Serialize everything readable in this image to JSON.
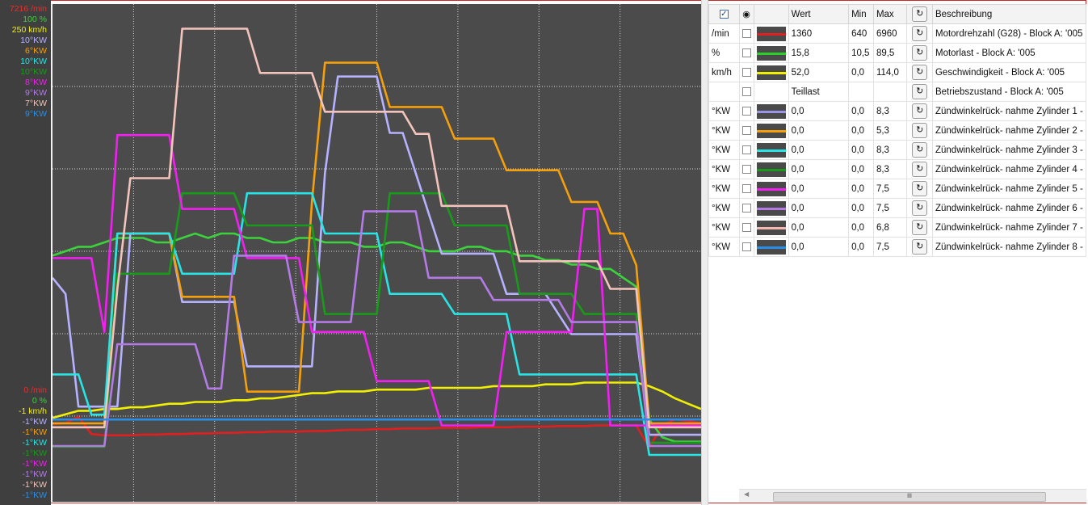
{
  "axis_labels": {
    "max": [
      {
        "text": "7216 /min",
        "color": "#e53030"
      },
      {
        "text": "100 %",
        "color": "#3cd23c"
      },
      {
        "text": "250 km/h",
        "color": "#f0f000"
      },
      {
        "text": "10°KW",
        "color": "#b6b2ff"
      },
      {
        "text": "6°KW",
        "color": "#f5a00a"
      },
      {
        "text": "10°KW",
        "color": "#28e4e4"
      },
      {
        "text": "10°KW",
        "color": "#1a9a1a"
      },
      {
        "text": "8°KW",
        "color": "#f020f0"
      },
      {
        "text": "9°KW",
        "color": "#b47ae6"
      },
      {
        "text": "7°KW",
        "color": "#f4c4bc"
      },
      {
        "text": "9°KW",
        "color": "#2a8ee6"
      }
    ],
    "min": [
      {
        "text": "0 /min",
        "color": "#e53030"
      },
      {
        "text": "0 %",
        "color": "#3cd23c"
      },
      {
        "text": "-1 km/h",
        "color": "#f0f000"
      },
      {
        "text": "-1°KW",
        "color": "#b6b2ff"
      },
      {
        "text": "-1°KW",
        "color": "#f5a00a"
      },
      {
        "text": "-1°KW",
        "color": "#28e4e4"
      },
      {
        "text": "-1°KW",
        "color": "#1a9a1a"
      },
      {
        "text": "-1°KW",
        "color": "#f020f0"
      },
      {
        "text": "-1°KW",
        "color": "#b47ae6"
      },
      {
        "text": "-1°KW",
        "color": "#f4c4bc"
      },
      {
        "text": "-1°KW",
        "color": "#2a8ee6"
      }
    ]
  },
  "table": {
    "headers": {
      "wert": "Wert",
      "min": "Min",
      "max": "Max",
      "beschreibung": "Beschreibung"
    },
    "rows": [
      {
        "unit": "/min",
        "color": "#e02020",
        "wert": "1360",
        "min": "640",
        "max": "6960",
        "desc": "Motordrehzahl (G28) - Block A: '005"
      },
      {
        "unit": "%",
        "color": "#2ad02a",
        "wert": "15,8",
        "min": "10,5",
        "max": "89,5",
        "desc": "Motorlast  - Block A: '005"
      },
      {
        "unit": "km/h",
        "color": "#f0f000",
        "wert": "52,0",
        "min": "0,0",
        "max": "114,0",
        "desc": "Geschwindigkeit  - Block A: '005"
      },
      {
        "unit": "",
        "color": "",
        "wert": "Teillast",
        "min": "",
        "max": "",
        "desc": "Betriebszustand  - Block A: '005"
      },
      {
        "unit": "°KW",
        "color": "#9a94e6",
        "wert": "0,0",
        "min": "0,0",
        "max": "8,3",
        "desc": "Zündwinkelrück- nahme Zylinder 1 -"
      },
      {
        "unit": "°KW",
        "color": "#f5a00a",
        "wert": "0,0",
        "min": "0,0",
        "max": "5,3",
        "desc": "Zündwinkelrück- nahme Zylinder 2 -"
      },
      {
        "unit": "°KW",
        "color": "#28e4e4",
        "wert": "0,0",
        "min": "0,0",
        "max": "8,3",
        "desc": "Zündwinkelrück- nahme Zylinder 3 -"
      },
      {
        "unit": "°KW",
        "color": "#1a9a1a",
        "wert": "0,0",
        "min": "0,0",
        "max": "8,3",
        "desc": "Zündwinkelrück- nahme Zylinder 4 -"
      },
      {
        "unit": "°KW",
        "color": "#f020f0",
        "wert": "0,0",
        "min": "0,0",
        "max": "7,5",
        "desc": "Zündwinkelrück- nahme Zylinder 5 -"
      },
      {
        "unit": "°KW",
        "color": "#b47ae6",
        "wert": "0,0",
        "min": "0,0",
        "max": "7,5",
        "desc": "Zündwinkelrück- nahme Zylinder 6 -"
      },
      {
        "unit": "°KW",
        "color": "#f4b8b0",
        "wert": "0,0",
        "min": "0,0",
        "max": "6,8",
        "desc": "Zündwinkelrück- nahme Zylinder 7 -"
      },
      {
        "unit": "°KW",
        "color": "#2a8ee6",
        "wert": "0,0",
        "min": "0,0",
        "max": "7,5",
        "desc": "Zündwinkelrück- nahme Zylinder 8 -"
      }
    ]
  },
  "chart_data": {
    "type": "line",
    "title": "",
    "xlabel": "",
    "ylabel": "",
    "x": [
      0,
      2,
      4,
      6,
      8,
      10,
      12,
      14,
      16,
      18,
      20,
      22,
      24,
      26,
      28,
      30,
      32,
      34,
      36,
      38,
      40,
      42,
      44,
      46,
      48,
      50,
      52,
      54,
      56,
      58,
      60,
      62,
      64,
      66,
      68,
      70,
      72,
      74,
      76,
      78,
      80,
      82,
      84,
      86,
      88,
      90,
      92,
      94,
      96,
      98,
      100
    ],
    "grid": true,
    "series": [
      {
        "color": "#e02020",
        "ylim": [
          0,
          7216
        ],
        "values": [
          500,
          520,
          620,
          340,
          320,
          320,
          320,
          330,
          330,
          340,
          340,
          350,
          350,
          360,
          360,
          370,
          370,
          380,
          380,
          380,
          390,
          390,
          400,
          410,
          410,
          420,
          420,
          430,
          430,
          430,
          440,
          440,
          440,
          450,
          450,
          450,
          460,
          460,
          460,
          470,
          470,
          470,
          480,
          480,
          480,
          480,
          120,
          480,
          580,
          550,
          520
        ]
      },
      {
        "color": "#3cd23c",
        "ylim": [
          0,
          100
        ],
        "values": [
          45,
          46,
          47,
          47,
          48,
          49,
          49,
          49,
          48,
          48,
          49,
          50,
          49,
          50,
          50,
          49,
          49,
          48,
          48,
          49,
          49,
          48,
          48,
          48,
          47,
          47,
          48,
          48,
          47,
          46,
          46,
          46,
          47,
          47,
          46,
          46,
          45,
          45,
          44,
          44,
          43,
          43,
          42,
          42,
          40,
          38,
          8,
          4,
          3,
          3,
          3
        ]
      },
      {
        "color": "#f0f000",
        "ylim": [
          -1,
          250
        ],
        "values": [
          20,
          22,
          24,
          24,
          25,
          25,
          26,
          26,
          27,
          28,
          28,
          29,
          29,
          29,
          30,
          30,
          31,
          31,
          32,
          33,
          34,
          34,
          35,
          35,
          35,
          36,
          36,
          36,
          36,
          37,
          37,
          37,
          37,
          37,
          38,
          38,
          38,
          38,
          39,
          39,
          39,
          40,
          40,
          40,
          40,
          40,
          38,
          35,
          31,
          28,
          25
        ]
      },
      {
        "color": "#b6b2ff",
        "ylim": [
          -1,
          10
        ],
        "values": [
          3.4,
          3.0,
          0.2,
          0.2,
          0.2,
          0.2,
          4.5,
          4.5,
          4.5,
          4.5,
          2.8,
          2.8,
          2.8,
          2.8,
          2.8,
          1.2,
          1.2,
          1.2,
          1.2,
          1.2,
          1.2,
          6.0,
          8.4,
          8.4,
          8.4,
          8.4,
          7.0,
          7.0,
          6.0,
          5.0,
          4.0,
          4.0,
          4.0,
          4.0,
          4.0,
          3.0,
          3.0,
          3.0,
          3.0,
          2.5,
          2.0,
          2.0,
          2.0,
          2.0,
          2.0,
          2.0,
          -0.5,
          -0.5,
          -0.5,
          -0.5,
          -0.5
        ]
      },
      {
        "color": "#f5a00a",
        "ylim": [
          -1,
          6
        ],
        "values": [
          -0.5,
          -0.5,
          -0.5,
          -0.5,
          -0.5,
          2.5,
          2.5,
          2.5,
          2.5,
          2.5,
          1.5,
          1.5,
          1.5,
          1.5,
          1.5,
          0.0,
          0.0,
          0.0,
          0.0,
          0.0,
          3.0,
          5.2,
          5.2,
          5.2,
          5.2,
          5.2,
          4.5,
          4.5,
          4.5,
          4.5,
          4.5,
          4.0,
          4.0,
          4.0,
          4.0,
          3.5,
          3.5,
          3.5,
          3.5,
          3.5,
          3.0,
          3.0,
          3.0,
          2.5,
          2.5,
          2.0,
          -0.5,
          -0.5,
          -0.5,
          -0.5,
          -0.5
        ]
      },
      {
        "color": "#28e4e4",
        "ylim": [
          -1,
          10
        ],
        "values": [
          1.0,
          1.0,
          1.0,
          0.0,
          0.0,
          4.5,
          4.5,
          4.5,
          4.5,
          4.5,
          3.5,
          3.5,
          3.5,
          3.5,
          3.5,
          5.5,
          5.5,
          5.5,
          5.5,
          5.5,
          5.5,
          4.5,
          4.5,
          4.5,
          4.5,
          4.5,
          3.0,
          3.0,
          3.0,
          3.0,
          3.0,
          2.5,
          2.5,
          2.5,
          2.5,
          2.5,
          1.0,
          1.0,
          1.0,
          1.0,
          1.0,
          1.0,
          1.0,
          1.0,
          1.0,
          1.0,
          -1.0,
          -1.0,
          -1.0,
          -1.0,
          -1.0
        ]
      },
      {
        "color": "#1a9a1a",
        "ylim": [
          -1,
          10
        ],
        "values": [
          -0.8,
          -0.8,
          -0.8,
          -0.8,
          -0.8,
          3.5,
          3.5,
          3.5,
          3.5,
          3.5,
          5.5,
          5.5,
          5.5,
          5.5,
          5.5,
          4.7,
          4.7,
          4.7,
          4.7,
          4.7,
          4.7,
          2.5,
          2.5,
          2.5,
          2.5,
          2.5,
          5.5,
          5.5,
          5.5,
          5.5,
          5.5,
          4.7,
          4.7,
          4.7,
          4.7,
          4.7,
          3.0,
          3.0,
          3.0,
          3.0,
          3.0,
          2.5,
          2.5,
          2.5,
          2.5,
          2.5,
          -0.7,
          -0.7,
          -0.7,
          -0.7,
          -0.7
        ]
      },
      {
        "color": "#f020f0",
        "ylim": [
          -1,
          8
        ],
        "values": [
          3.0,
          3.0,
          3.0,
          3.0,
          1.5,
          5.5,
          5.5,
          5.5,
          5.5,
          5.5,
          4.0,
          4.0,
          4.0,
          4.0,
          4.0,
          3.0,
          3.0,
          3.0,
          3.0,
          3.0,
          1.5,
          1.5,
          1.5,
          1.5,
          1.5,
          0.5,
          0.5,
          0.5,
          0.5,
          0.5,
          -0.4,
          -0.4,
          -0.4,
          -0.4,
          -0.4,
          1.5,
          1.5,
          1.5,
          1.5,
          1.5,
          1.5,
          4.0,
          4.0,
          -0.4,
          -0.4,
          -0.4,
          -0.4,
          -0.4,
          -0.4,
          -0.4,
          -0.4
        ]
      },
      {
        "color": "#b47ae6",
        "ylim": [
          -1,
          9
        ],
        "values": [
          -0.8,
          -0.8,
          -0.8,
          -0.8,
          -0.8,
          1.5,
          1.5,
          1.5,
          1.5,
          1.5,
          1.5,
          1.5,
          0.5,
          0.5,
          3.5,
          3.5,
          3.5,
          3.5,
          3.5,
          2.0,
          2.0,
          2.0,
          2.0,
          2.0,
          4.5,
          4.5,
          4.5,
          4.5,
          4.5,
          3.0,
          3.0,
          3.0,
          3.0,
          3.0,
          2.5,
          2.5,
          2.5,
          2.5,
          2.5,
          2.5,
          2.0,
          2.0,
          2.0,
          2.0,
          2.0,
          2.0,
          -0.8,
          -0.8,
          -0.8,
          -0.8,
          -0.8
        ]
      },
      {
        "color": "#f4c4bc",
        "ylim": [
          -1,
          7
        ],
        "values": [
          -0.5,
          -0.5,
          -0.5,
          -0.5,
          -0.5,
          2.0,
          4.0,
          4.0,
          4.0,
          4.0,
          6.7,
          6.7,
          6.7,
          6.7,
          6.7,
          6.7,
          5.9,
          5.9,
          5.9,
          5.9,
          5.9,
          5.2,
          5.2,
          5.2,
          5.2,
          5.2,
          5.2,
          5.2,
          4.8,
          4.8,
          3.5,
          3.5,
          3.5,
          3.5,
          3.5,
          3.5,
          2.5,
          2.5,
          2.5,
          2.5,
          2.5,
          2.5,
          2.5,
          2.0,
          2.0,
          2.0,
          -0.5,
          -0.5,
          -0.5,
          -0.5,
          -0.5
        ]
      },
      {
        "color": "#2a8ee6",
        "ylim": [
          -1,
          9
        ],
        "values": [
          -0.2,
          -0.2,
          -0.2,
          -0.2,
          -0.2,
          -0.2,
          -0.2,
          -0.2,
          -0.2,
          -0.2,
          -0.2,
          -0.2,
          -0.2,
          -0.2,
          -0.2,
          -0.2,
          -0.2,
          -0.2,
          -0.2,
          -0.2,
          -0.2,
          -0.2,
          -0.2,
          -0.2,
          -0.2,
          -0.2,
          -0.2,
          -0.2,
          -0.2,
          -0.2,
          -0.2,
          -0.2,
          -0.2,
          -0.2,
          -0.2,
          -0.2,
          -0.2,
          -0.2,
          -0.2,
          -0.2,
          -0.2,
          -0.2,
          -0.2,
          -0.2,
          -0.2,
          -0.2,
          -0.2,
          -0.2,
          -0.2,
          -0.2,
          -0.2
        ]
      }
    ]
  }
}
